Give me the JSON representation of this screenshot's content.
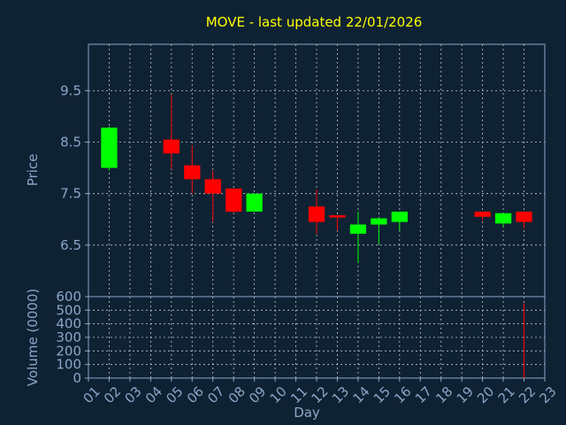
{
  "chart_data": {
    "type": "candlestick",
    "title": "MOVE - last updated 22/01/2026",
    "xlabel": "Day",
    "x_ticks": [
      "01",
      "02",
      "03",
      "04",
      "05",
      "06",
      "07",
      "08",
      "09",
      "10",
      "11",
      "12",
      "13",
      "14",
      "15",
      "16",
      "17",
      "18",
      "19",
      "20",
      "21",
      "22",
      "23"
    ],
    "price_panel": {
      "ylabel": "Price",
      "ylim": [
        5.5,
        10.4
      ],
      "y_ticks": [
        "6.5",
        "7.5",
        "8.5",
        "9.5"
      ],
      "candles": [
        {
          "day": 2,
          "open": 8.0,
          "high": 8.8,
          "low": 7.95,
          "close": 8.78
        },
        {
          "day": 5,
          "open": 8.55,
          "high": 9.42,
          "low": 7.98,
          "close": 8.28
        },
        {
          "day": 6,
          "open": 8.05,
          "high": 8.43,
          "low": 7.5,
          "close": 7.78
        },
        {
          "day": 7,
          "open": 7.78,
          "high": 7.95,
          "low": 6.95,
          "close": 7.5
        },
        {
          "day": 8,
          "open": 7.6,
          "high": 7.6,
          "low": 7.12,
          "close": 7.15
        },
        {
          "day": 9,
          "open": 7.15,
          "high": 7.5,
          "low": 7.15,
          "close": 7.5
        },
        {
          "day": 12,
          "open": 7.25,
          "high": 7.58,
          "low": 6.72,
          "close": 6.95
        },
        {
          "day": 13,
          "open": 7.08,
          "high": 7.08,
          "low": 6.78,
          "close": 7.05
        },
        {
          "day": 14,
          "open": 6.72,
          "high": 7.15,
          "low": 6.15,
          "close": 6.9
        },
        {
          "day": 15,
          "open": 6.9,
          "high": 7.02,
          "low": 6.52,
          "close": 7.02
        },
        {
          "day": 16,
          "open": 6.95,
          "high": 7.15,
          "low": 6.78,
          "close": 7.15
        },
        {
          "day": 20,
          "open": 7.15,
          "high": 7.15,
          "low": 6.98,
          "close": 7.05
        },
        {
          "day": 21,
          "open": 6.92,
          "high": 7.12,
          "low": 6.85,
          "close": 7.12
        },
        {
          "day": 22,
          "open": 7.15,
          "high": 7.15,
          "low": 6.82,
          "close": 6.95
        }
      ]
    },
    "volume_panel": {
      "ylabel": "Volume (0000)",
      "ylim": [
        0,
        600
      ],
      "y_ticks": [
        "0",
        "100",
        "200",
        "300",
        "400",
        "500",
        "600"
      ],
      "bars": [
        {
          "day": 22,
          "value": 550
        }
      ]
    },
    "grid": true,
    "colors": {
      "background": "#0f2233",
      "plot_background": "#0f2233",
      "up": "#00ff00",
      "down": "#ff0000",
      "grid": "#c0c8d0",
      "frame": "#8aa6c8",
      "title": "#ffff00",
      "labels": "#8aa6c8"
    }
  }
}
